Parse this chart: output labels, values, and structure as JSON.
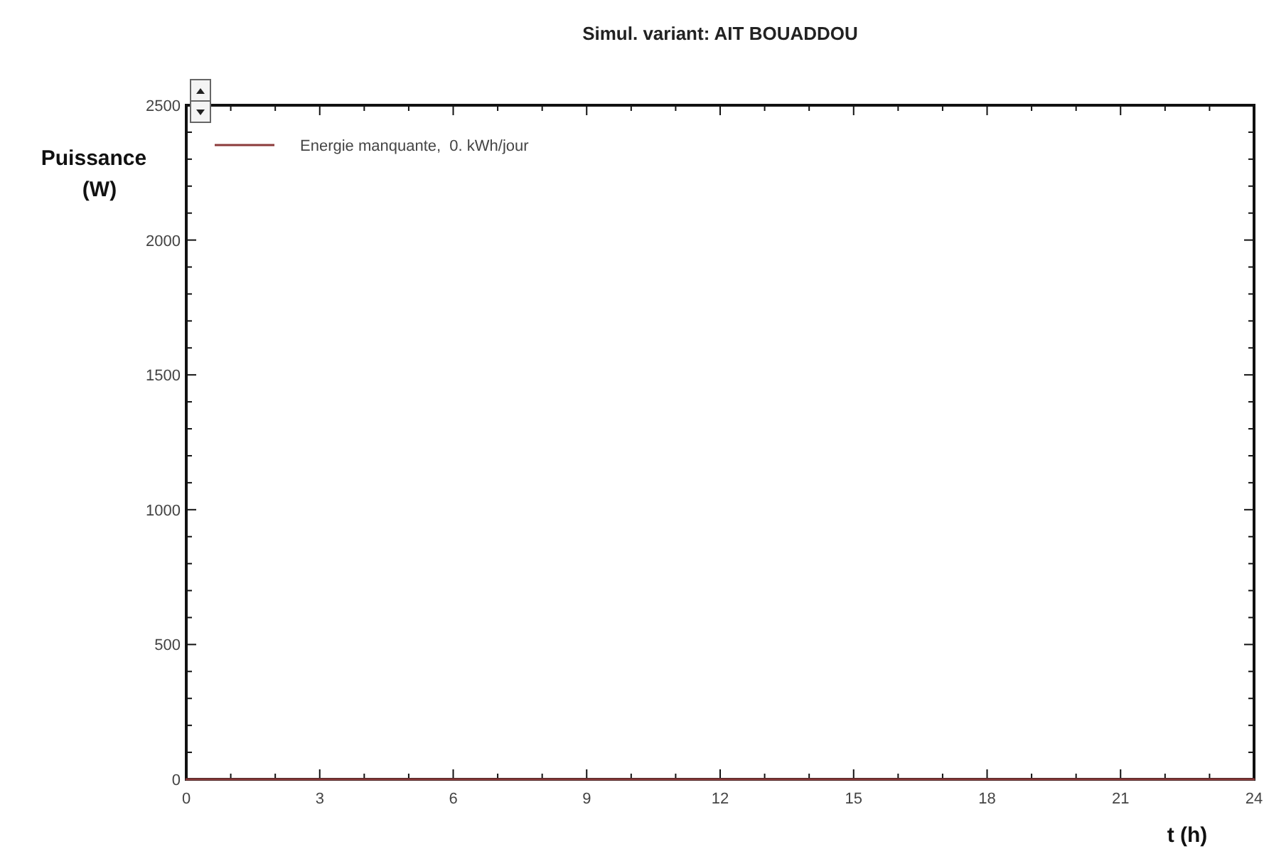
{
  "chart_data": {
    "type": "line",
    "title": "Simul. variant: AIT BOUADDOU",
    "xlabel": "t (h)",
    "ylabel": "Puissance\n(W)",
    "x": [
      0,
      24
    ],
    "series": [
      {
        "name": "Energie manquante,  0. kWh/jour",
        "color": "#8b3a3a",
        "values": [
          0,
          0
        ]
      }
    ],
    "xlim": [
      0,
      24
    ],
    "xticks": [
      0,
      3,
      6,
      9,
      12,
      15,
      18,
      21,
      24
    ],
    "ylim": [
      0,
      2500
    ],
    "yticks": [
      0,
      500,
      1000,
      1500,
      2000,
      2500
    ],
    "grid": false,
    "legend": "top left"
  }
}
